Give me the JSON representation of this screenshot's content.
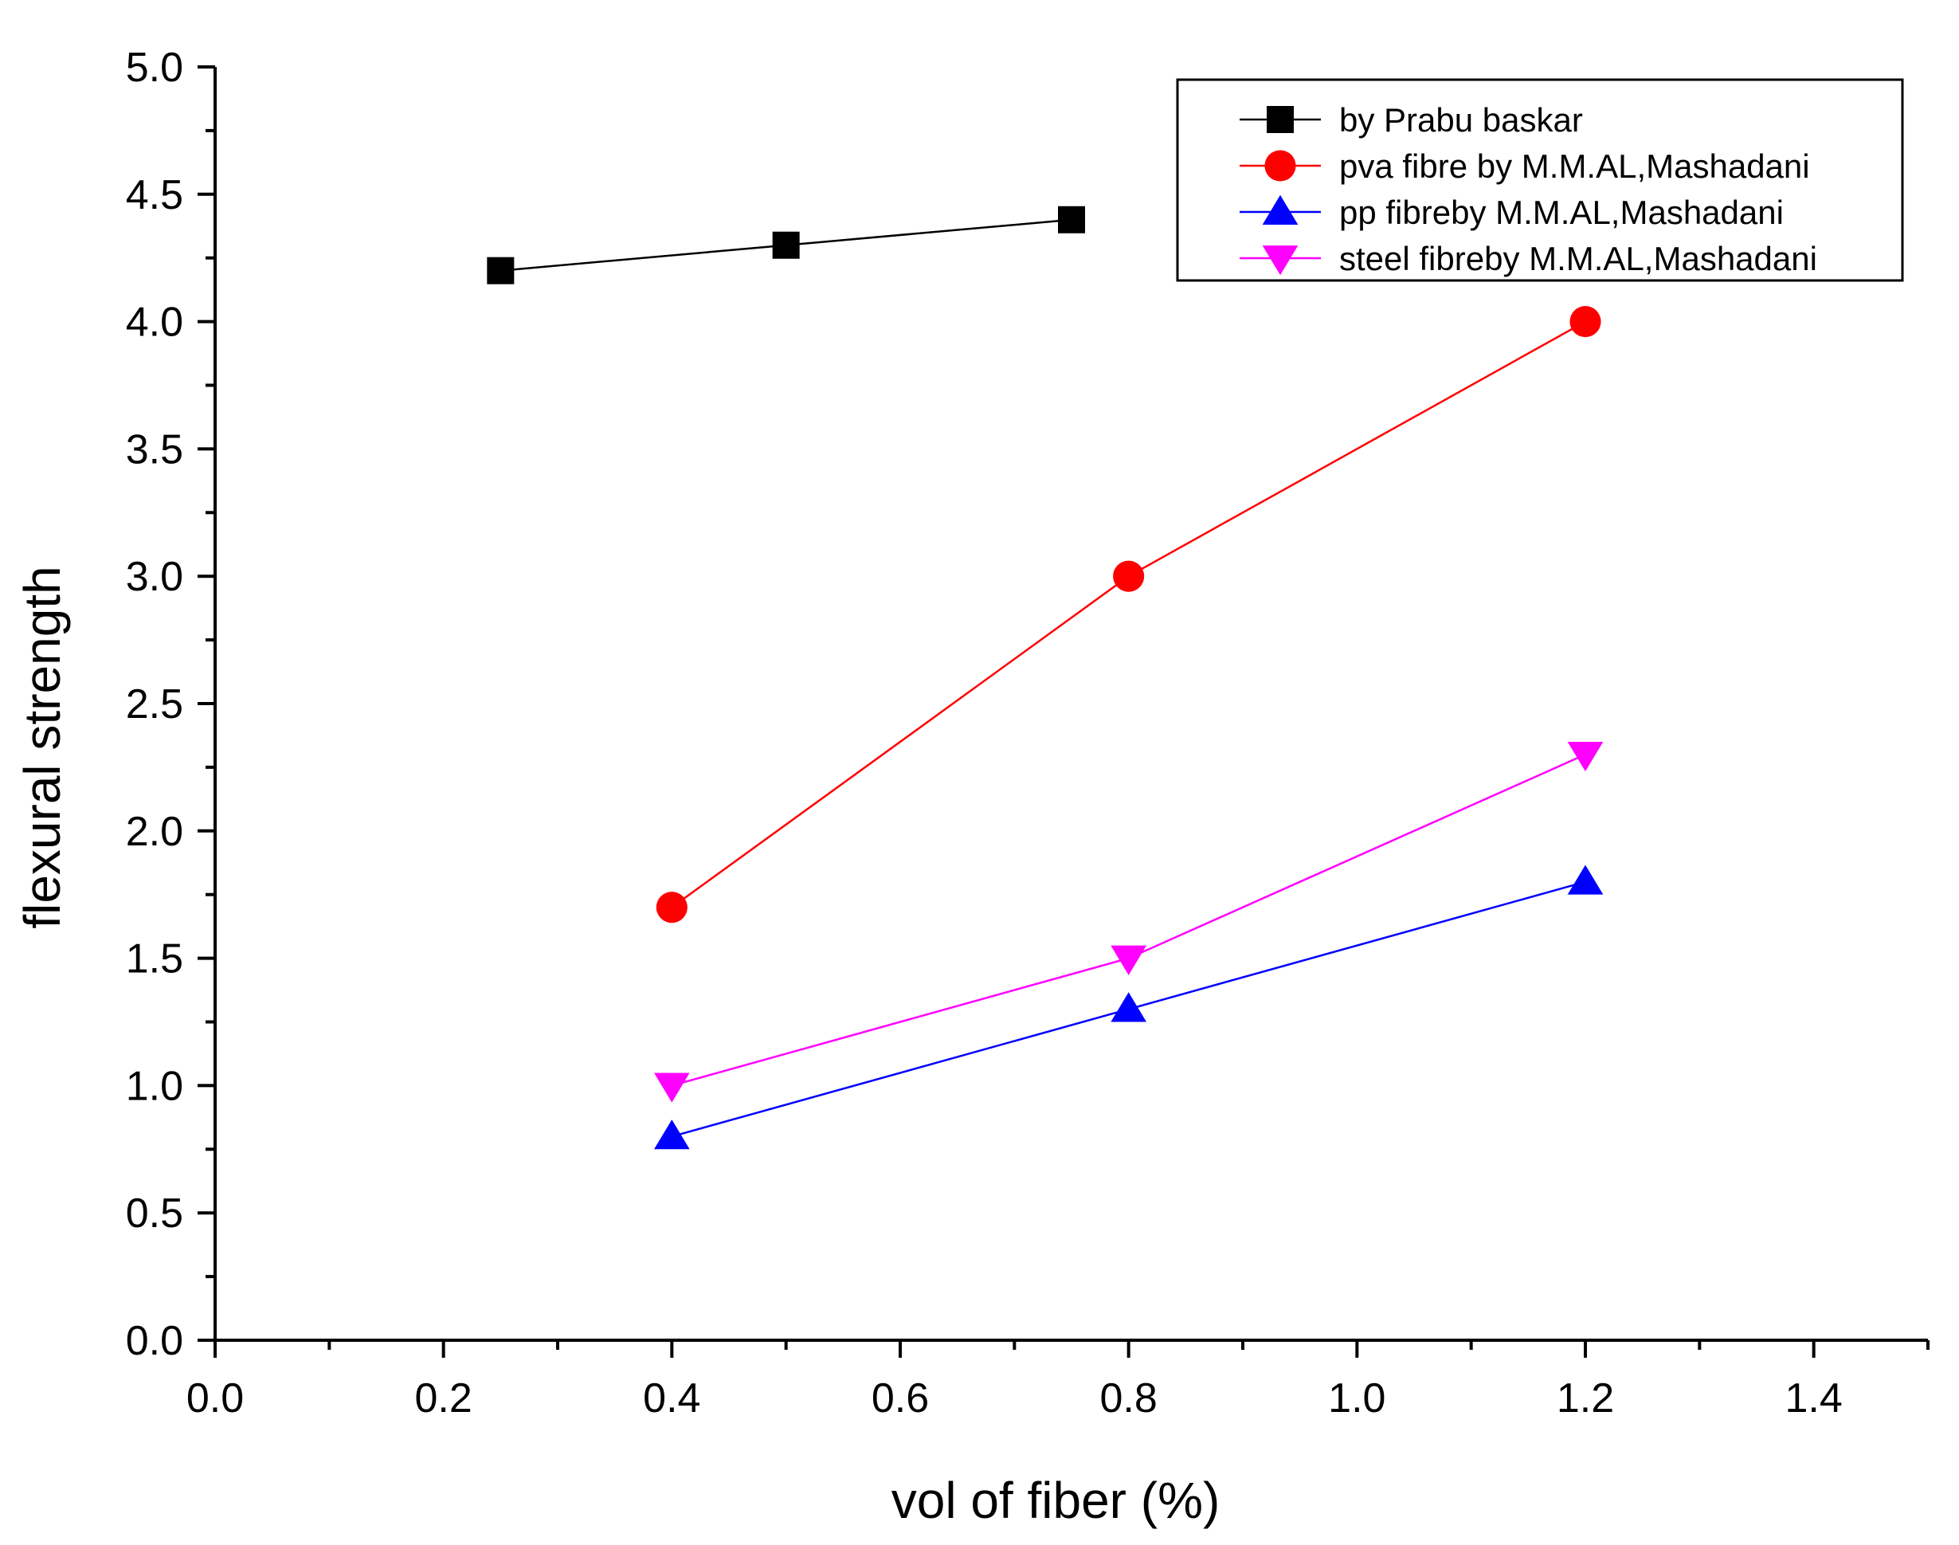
{
  "chart_data": {
    "type": "line",
    "title": "",
    "xlabel": "vol of fiber (%)",
    "ylabel": "flexural strength",
    "xlim": [
      0.0,
      1.5
    ],
    "ylim": [
      0.0,
      5.0
    ],
    "x_ticks": [
      "0.0",
      "0.2",
      "0.4",
      "0.6",
      "0.8",
      "1.0",
      "1.2",
      "1.4"
    ],
    "y_ticks": [
      "0.0",
      "0.5",
      "1.0",
      "1.5",
      "2.0",
      "2.5",
      "3.0",
      "3.5",
      "4.0",
      "4.5",
      "5.0"
    ],
    "grid": false,
    "legend_position": "top-right",
    "series": [
      {
        "name": "by Prabu baskar",
        "color": "#000000",
        "marker": "square",
        "x": [
          0.25,
          0.5,
          0.75
        ],
        "y": [
          4.2,
          4.3,
          4.4
        ]
      },
      {
        "name": "pva fibre by M.M.AL,Mashadani",
        "color": "#ff0000",
        "marker": "circle",
        "x": [
          0.4,
          0.8,
          1.2
        ],
        "y": [
          1.7,
          3.0,
          4.0
        ]
      },
      {
        "name": "pp fibreby M.M.AL,Mashadani",
        "color": "#0000ff",
        "marker": "triangle-up",
        "x": [
          0.4,
          0.8,
          1.2
        ],
        "y": [
          0.8,
          1.3,
          1.8
        ]
      },
      {
        "name": "steel fibreby M.M.AL,Mashadani",
        "color": "#ff00ff",
        "marker": "triangle-down",
        "x": [
          0.4,
          0.8,
          1.2
        ],
        "y": [
          1.0,
          1.5,
          2.3
        ]
      }
    ]
  }
}
